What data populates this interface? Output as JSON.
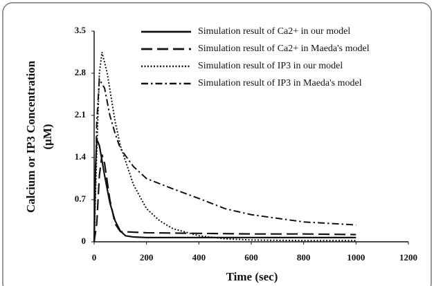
{
  "chart_data": {
    "type": "line",
    "xlabel": "Time (sec)",
    "ylabel": [
      "Calcium or IP3 Concentration",
      "(μM)"
    ],
    "xlim": [
      0,
      1200
    ],
    "xticks": [
      0,
      200,
      400,
      600,
      800,
      1000,
      1200
    ],
    "ylim": [
      0,
      3.5
    ],
    "yticks": [
      0,
      0.7,
      1.4,
      2.1,
      2.8,
      3.5
    ],
    "grid": false,
    "legend": "top",
    "series": [
      {
        "name": "Simulation result of  Ca2+  in our model",
        "color": "#111111",
        "style": "solid",
        "x": [
          0,
          5,
          10,
          20,
          40,
          60,
          80,
          100,
          120,
          150,
          200,
          400,
          600,
          800,
          1000
        ],
        "values": [
          0,
          1.2,
          1.7,
          1.6,
          1.1,
          0.65,
          0.35,
          0.18,
          0.1,
          0.08,
          0.07,
          0.07,
          0.07,
          0.07,
          0.07
        ]
      },
      {
        "name": "Simulation result of  Ca2+  in Maeda's  model",
        "color": "#111111",
        "style": "dashed",
        "x": [
          0,
          10,
          20,
          30,
          40,
          60,
          80,
          100,
          150,
          200,
          400,
          600,
          800,
          1000
        ],
        "values": [
          0,
          0.3,
          1.1,
          1.45,
          1.3,
          0.7,
          0.3,
          0.17,
          0.16,
          0.15,
          0.14,
          0.13,
          0.13,
          0.12
        ]
      },
      {
        "name": "Simulation result of IP3 in our model",
        "color": "#111111",
        "style": "dotted",
        "x": [
          0,
          10,
          20,
          30,
          50,
          80,
          100,
          150,
          200,
          250,
          300,
          400,
          500,
          600,
          800,
          1000
        ],
        "values": [
          0,
          1.5,
          2.8,
          3.15,
          2.8,
          2.0,
          1.6,
          0.95,
          0.55,
          0.35,
          0.22,
          0.1,
          0.05,
          0.03,
          0.02,
          0.02
        ]
      },
      {
        "name": "Simulation result of IP3 in Maeda's  model",
        "color": "#111111",
        "style": "dashdot",
        "x": [
          0,
          10,
          20,
          40,
          60,
          80,
          100,
          150,
          200,
          300,
          400,
          500,
          600,
          800,
          1000
        ],
        "values": [
          0,
          2.0,
          2.7,
          2.55,
          2.1,
          1.8,
          1.55,
          1.25,
          1.05,
          0.88,
          0.72,
          0.55,
          0.45,
          0.33,
          0.28
        ]
      }
    ]
  }
}
